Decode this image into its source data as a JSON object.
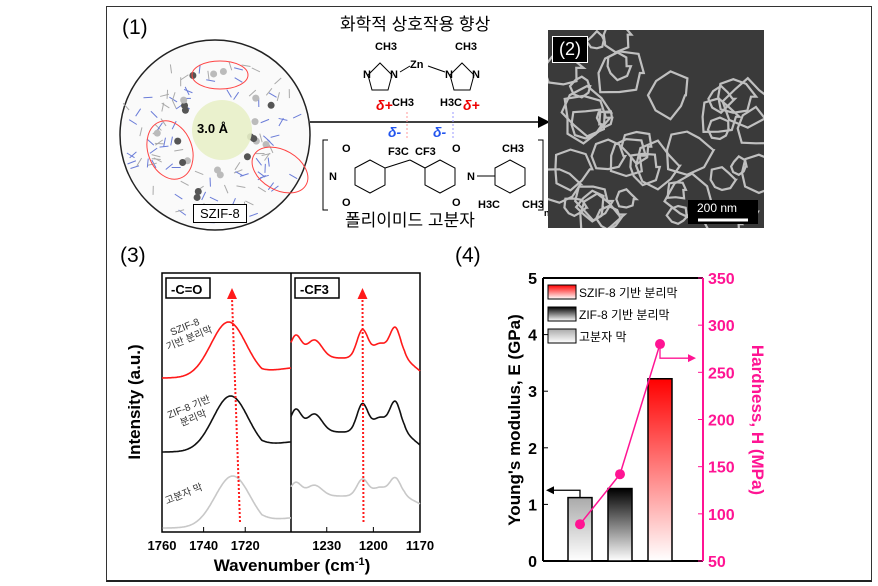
{
  "panel1": {
    "label": "(1)",
    "material_label": "SZIF-8",
    "pore_label": "3.0 Å",
    "title": "화학적 상호작용 향상",
    "polymer_label": "폴리이미드 고분자",
    "chem": {
      "ch3": "CH3",
      "h3c": "H3C",
      "zn": "Zn",
      "n": "N",
      "o": "O",
      "f3c": "F3C",
      "cf3": "CF3",
      "delta_plus": "δ+",
      "delta_minus": "δ-",
      "repeat": "n"
    }
  },
  "panel2": {
    "label": "(2)",
    "scale_bar": "200 nm"
  },
  "panel3": {
    "label": "(3)"
  },
  "panel4": {
    "label": "(4)"
  },
  "colors": {
    "red": "#ff1a1a",
    "black": "#111111",
    "gray": "#c8c8c8",
    "pink": "#ff1493"
  },
  "chart_data": [
    {
      "type": "line",
      "title": "",
      "xlabel": "Wavenumber (cm-1)",
      "ylabel": "Intensity (a.u.)",
      "subpanels": [
        {
          "label": "-C=O",
          "xlim": [
            1760,
            1698
          ],
          "xticks": [
            1760,
            1740,
            1720
          ],
          "peak_marker": 1727
        },
        {
          "label": "-CF3",
          "xlim": [
            1253,
            1170
          ],
          "xticks": [
            1230,
            1200,
            1170
          ],
          "peak_marker": 1207
        }
      ],
      "series": [
        {
          "name": "SZIF-8 기반 분리막",
          "color": "#ff1a1a",
          "c_o_peak": 1728,
          "cf3_peaks": [
            1250,
            1238,
            1207,
            1186
          ]
        },
        {
          "name": "ZIF-8 기반 분리막",
          "color": "#111111",
          "c_o_peak": 1727,
          "cf3_peaks": [
            1250,
            1238,
            1207,
            1186
          ]
        },
        {
          "name": "고분자 막",
          "color": "#c8c8c8",
          "c_o_peak": 1726,
          "cf3_peaks": [
            1250,
            1238,
            1207,
            1186
          ]
        }
      ],
      "series_labels": [
        "SZIF-8\n기반 분리막",
        "ZIF-8 기반\n분리막",
        "고분자 막"
      ]
    },
    {
      "type": "bar",
      "categories": [
        "고분자 막",
        "ZIF-8 기반 분리막",
        "SZIF-8 기반 분리막"
      ],
      "series": [
        {
          "name": "Young's modulus, E (GPa)",
          "axis": "left",
          "values": [
            1.12,
            1.28,
            3.22
          ]
        },
        {
          "name": "Hardness, H (MPa)",
          "axis": "right",
          "type": "line",
          "values": [
            89,
            142,
            280
          ]
        }
      ],
      "ylabel": "Young's modulus, E (GPa)",
      "ylabel_right": "Hardness, H (MPa)",
      "ylim": [
        0,
        5
      ],
      "ylim_right": [
        50,
        350
      ],
      "yticks": [
        "0",
        "1",
        "2",
        "3",
        "4",
        "5"
      ],
      "yticks_right": [
        "50",
        "100",
        "150",
        "200",
        "250",
        "300",
        "350"
      ],
      "legend": [
        "SZIF-8 기반 분리막",
        "ZIF-8 기반 분리막",
        "고분자 막"
      ],
      "legend_position": "top-left"
    }
  ]
}
